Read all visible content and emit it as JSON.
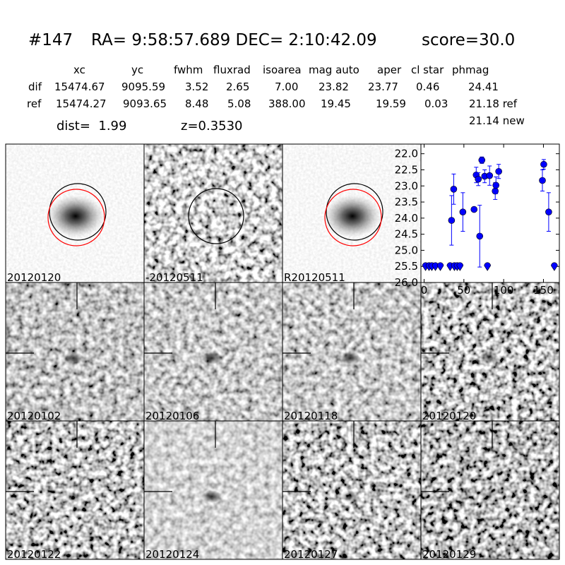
{
  "header": {
    "id": "#147",
    "coords": "RA= 9:58:57.689 DEC= 2:10:42.09",
    "score": "score=30.0"
  },
  "table": {
    "columns": [
      "xc",
      "yc",
      "fwhm",
      "fluxrad",
      "isoarea",
      "mag auto",
      "aper",
      "cl star",
      "phmag"
    ],
    "rows": [
      {
        "label": "dif",
        "cells": [
          "15474.67",
          "9095.59",
          "3.52",
          "2.65",
          "7.00",
          "23.82",
          "23.77",
          "0.46",
          "24.41"
        ]
      },
      {
        "label": "ref",
        "cells": [
          "15474.27",
          "9093.65",
          "8.48",
          "5.08",
          "388.00",
          "19.45",
          "19.59",
          "0.03",
          "21.18 ref"
        ]
      }
    ],
    "extra": "21.14 new"
  },
  "info": [
    "dist=  1.99",
    "z=0.3530"
  ],
  "panels": [
    {
      "label": "20120120"
    },
    {
      "label": "-20120511"
    },
    {
      "label": "R20120511"
    },
    {
      "label": "20120102"
    },
    {
      "label": "20120106"
    },
    {
      "label": "20120118"
    },
    {
      "label": "20120120",
      "color": "#ff0000"
    },
    {
      "label": "20120122"
    },
    {
      "label": "20120124"
    },
    {
      "label": "20120127"
    },
    {
      "label": "20120129"
    }
  ],
  "chart_data": {
    "type": "scatter",
    "xlim": [
      -4,
      170
    ],
    "xticks": [
      0,
      50,
      100,
      150
    ],
    "ylim": [
      26,
      21.7
    ],
    "yticks": [
      {
        "value": 22,
        "label": "22.0"
      },
      {
        "value": 22.5,
        "label": "22.5"
      },
      {
        "value": 23,
        "label": "23.0"
      },
      {
        "value": 23.5,
        "label": "23.5"
      },
      {
        "value": 24,
        "label": "24.0"
      },
      {
        "value": 24.5,
        "label": "24.5"
      },
      {
        "value": 25,
        "label": "25.0"
      },
      {
        "value": 25.5,
        "label": "25.5"
      },
      {
        "value": 26,
        "label": "26.0"
      }
    ],
    "series": [
      {
        "color": "#0000ff",
        "marker": "circle",
        "x": [
          34.5,
          37.2,
          48.7,
          62.8,
          65.5,
          68.1,
          69.9,
          72.6,
          76.1,
          82.3,
          89.4,
          90.3,
          93.8,
          148.7,
          150.4,
          156.6
        ],
        "values": [
          24.07,
          23.1,
          23.81,
          23.73,
          22.66,
          22.79,
          24.56,
          22.2,
          22.7,
          22.68,
          23.16,
          22.98,
          22.55,
          22.83,
          22.33,
          23.81
        ],
        "errors": [
          0.77,
          0.47,
          0.6,
          0.05,
          0.24,
          0.2,
          0.96,
          0.1,
          0.2,
          0.3,
          0.26,
          0.26,
          0.22,
          0.33,
          0.15,
          0.6
        ]
      },
      {
        "color": "#0000ff",
        "marker": "limit",
        "x": [
          1.8,
          6.2,
          9.7,
          14.2,
          20.4,
          32.7,
          38.1,
          41.6,
          45.1,
          79.6,
          163.7
        ],
        "values": [
          25.5,
          25.5,
          25.5,
          25.5,
          25.5,
          25.5,
          25.5,
          25.5,
          25.5,
          25.5,
          25.5
        ]
      }
    ]
  }
}
